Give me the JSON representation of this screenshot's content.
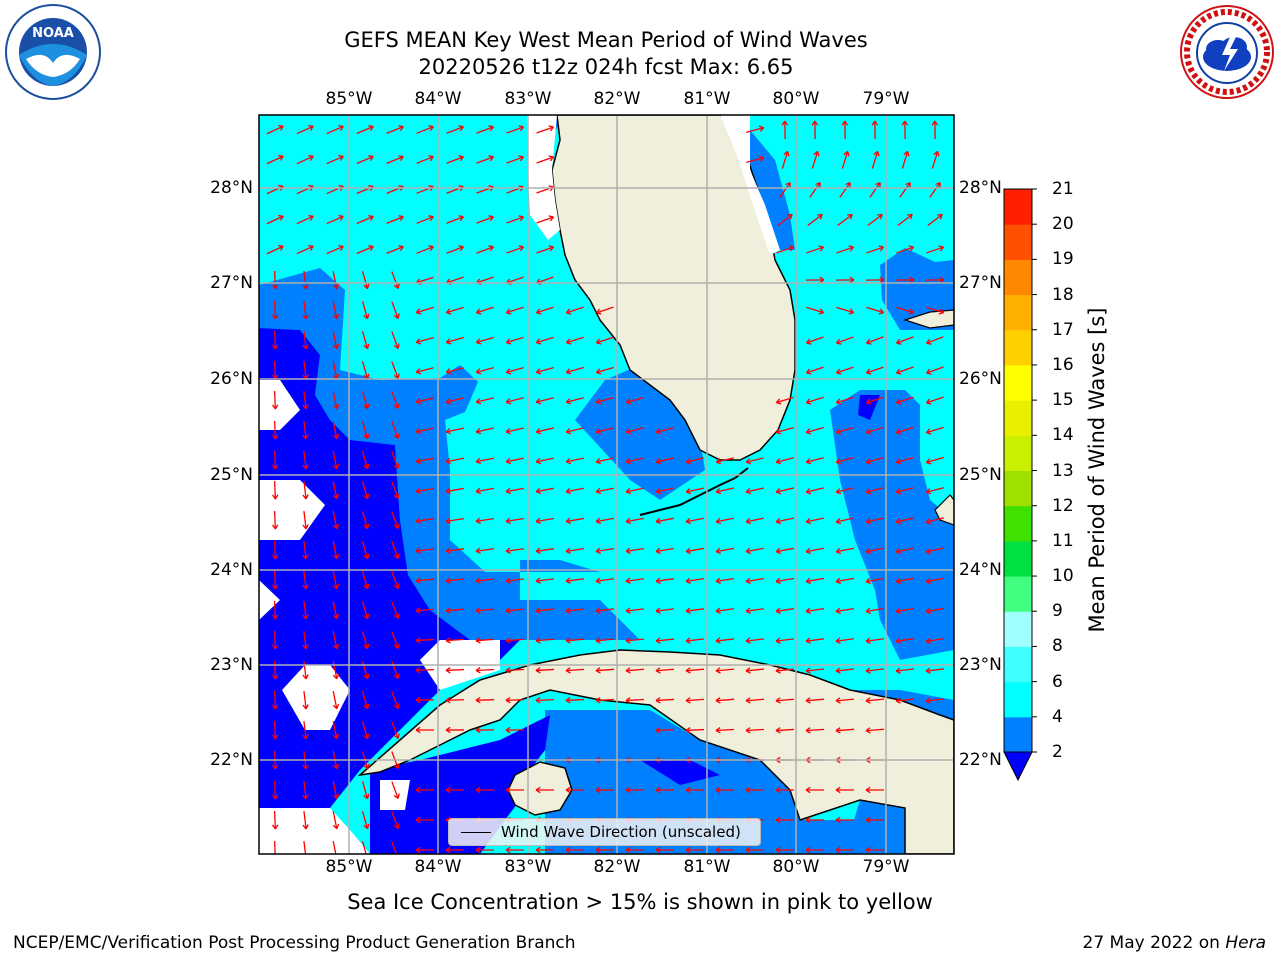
{
  "title_line1": "GEFS MEAN Key West Mean Period of Wind Waves",
  "title_line2": "20220526 t12z 024h fcst   Max: 6.65",
  "lon_labels": [
    "85°W",
    "84°W",
    "83°W",
    "82°W",
    "81°W",
    "80°W",
    "79°W"
  ],
  "lat_labels": [
    "28°N",
    "27°N",
    "26°N",
    "25°N",
    "24°N",
    "23°N",
    "22°N"
  ],
  "map_legend_label": "Wind Wave Direction (unscaled)",
  "colorbar": {
    "label": "Mean Period of Wind Waves [s]",
    "ticks": [
      "2",
      "4",
      "6",
      "8",
      "9",
      "10",
      "11",
      "12",
      "13",
      "14",
      "15",
      "16",
      "17",
      "18",
      "19",
      "20",
      "21"
    ],
    "colors": [
      "#0000ff",
      "#0080ff",
      "#00ffff",
      "#40ffff",
      "#a0ffff",
      "#40ff80",
      "#00e040",
      "#40e000",
      "#a0e000",
      "#c8f000",
      "#e8f000",
      "#ffff00",
      "#ffd000",
      "#ffb000",
      "#ff8800",
      "#ff5000",
      "#ff2000",
      "#ff0000"
    ]
  },
  "map_colors": {
    "land": "#efefdb",
    "ocean_high": "#00ffff",
    "ocean_mid": "#0080ff",
    "ocean_low": "#0000ff",
    "arrows": "#ff0000",
    "grid": "#b0b0b0"
  },
  "subtitle": "Sea Ice Concentration > 15% is shown in pink to yellow",
  "footer_left": "NCEP/EMC/Verification Post Processing Product Generation Branch",
  "footer_right_date": "27 May 2022 on ",
  "footer_right_host": "Hera",
  "logos": {
    "left": "noaa-logo",
    "right": "national-weather-service-logo"
  }
}
